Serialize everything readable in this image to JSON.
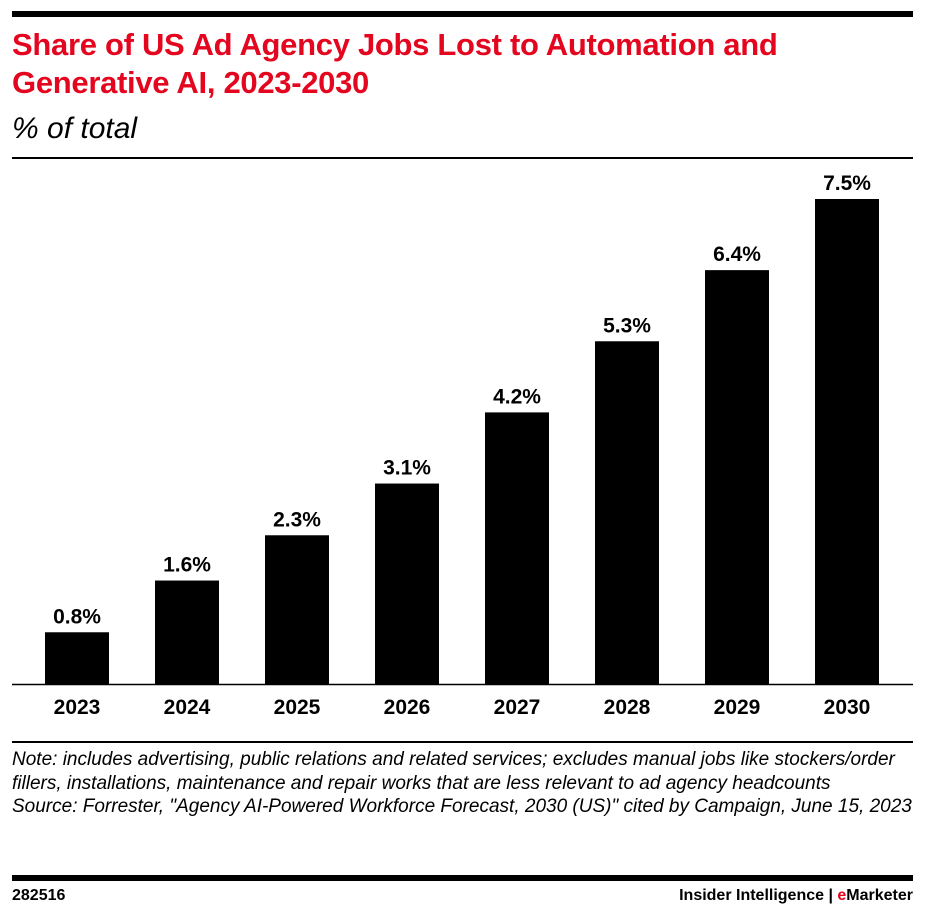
{
  "title": "Share of US Ad Agency Jobs Lost to Automation and Generative AI, 2023-2030",
  "subtitle": "% of total",
  "note": "Note: includes advertising, public relations and related services; excludes manual jobs like stockers/order fillers, installations, maintenance and repair works that are less relevant to ad agency headcounts",
  "source": "Source: Forrester, \"Agency AI-Powered Workforce Forecast, 2030 (US)\" cited by Campaign, June 15, 2023",
  "chart_id": "282516",
  "brand": {
    "part1": "Insider Intelligence | ",
    "e": "e",
    "part2": "Marketer"
  },
  "colors": {
    "title": "#e4051f",
    "bar": "#000000"
  },
  "chart_data": {
    "type": "bar",
    "title": "Share of US Ad Agency Jobs Lost to Automation and Generative AI, 2023-2030",
    "subtitle": "% of total",
    "categories": [
      "2023",
      "2024",
      "2025",
      "2026",
      "2027",
      "2028",
      "2029",
      "2030"
    ],
    "values": [
      0.8,
      1.6,
      2.3,
      3.1,
      4.2,
      5.3,
      6.4,
      7.5
    ],
    "data_labels": [
      "0.8%",
      "1.6%",
      "2.3%",
      "3.1%",
      "4.2%",
      "5.3%",
      "6.4%",
      "7.5%"
    ],
    "ylim": [
      0,
      7.5
    ],
    "grid": false,
    "legend": "none"
  }
}
